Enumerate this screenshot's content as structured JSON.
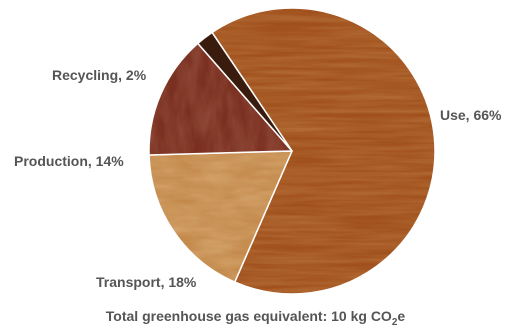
{
  "chart_data": {
    "type": "pie",
    "title": "",
    "slices": [
      {
        "label": "Use, 66%",
        "value": 66,
        "color": "#a0501c"
      },
      {
        "label": "Transport, 18%",
        "value": 18,
        "color": "#c48a4c"
      },
      {
        "label": "Production, 14%",
        "value": 14,
        "color": "#7a3020"
      },
      {
        "label": "Recycling, 2%",
        "value": 2,
        "color": "#3a1c0e"
      }
    ],
    "caption": {
      "text": "Total greenhouse gas equivalent: 10 kg CO",
      "subscript": "2",
      "suffix": "e"
    }
  }
}
